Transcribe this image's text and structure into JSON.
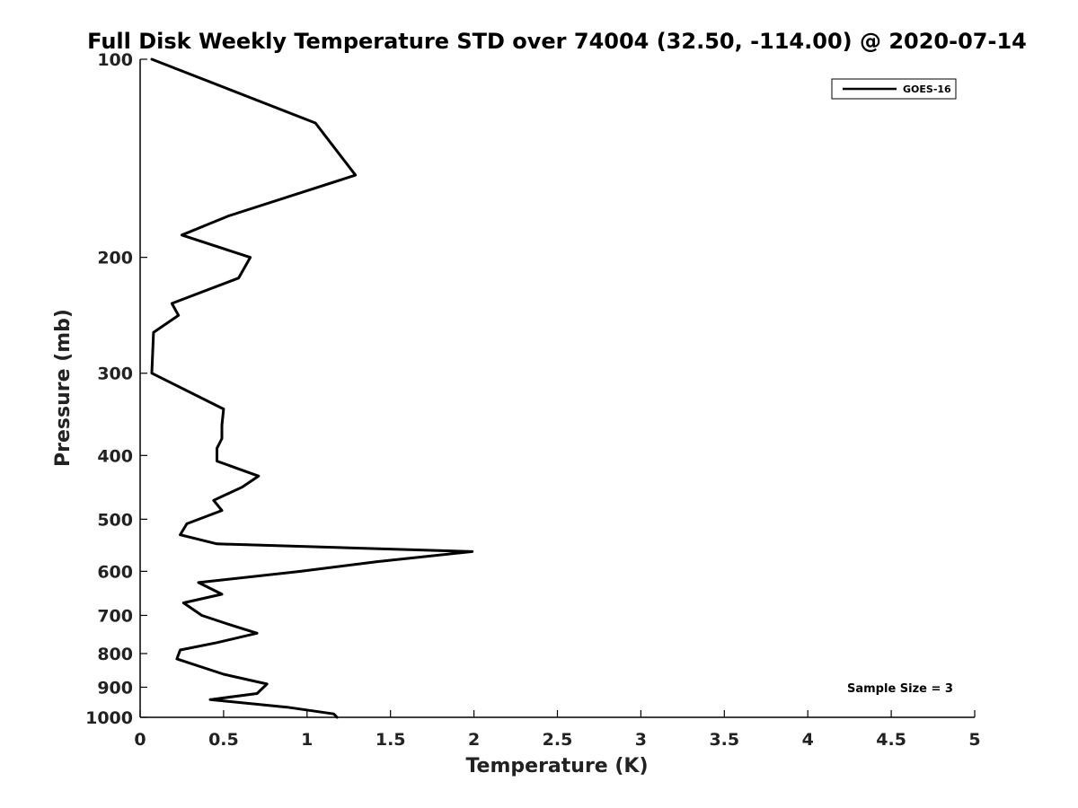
{
  "chart_data": {
    "type": "line",
    "title": "Full Disk Weekly Temperature STD over 74004 (32.50, -114.00) @ 2020-07-14",
    "xlabel": "Temperature (K)",
    "ylabel": "Pressure (mb)",
    "xlim": [
      0,
      5
    ],
    "ylim": [
      100,
      1000
    ],
    "y_scale": "log",
    "y_reversed": true,
    "x_ticks": [
      0,
      0.5,
      1,
      1.5,
      2,
      2.5,
      3,
      3.5,
      4,
      4.5,
      5
    ],
    "x_tick_labels": [
      "0",
      "0.5",
      "1",
      "1.5",
      "2",
      "2.5",
      "3",
      "3.5",
      "4",
      "4.5",
      "5"
    ],
    "y_ticks": [
      100,
      200,
      300,
      400,
      500,
      600,
      700,
      800,
      900,
      1000
    ],
    "y_tick_labels": [
      "100",
      "200",
      "300",
      "400",
      "500",
      "600",
      "700",
      "800",
      "900",
      "1000"
    ],
    "grid": false,
    "legend_position": "top-right",
    "series": [
      {
        "name": "GOES-16",
        "color": "#000000",
        "points": [
          [
            0.07,
            100
          ],
          [
            1.05,
            125
          ],
          [
            1.29,
            150
          ],
          [
            0.53,
            173
          ],
          [
            0.25,
            185
          ],
          [
            0.66,
            200
          ],
          [
            0.59,
            215
          ],
          [
            0.19,
            235
          ],
          [
            0.23,
            245
          ],
          [
            0.08,
            260
          ],
          [
            0.07,
            300
          ],
          [
            0.5,
            340
          ],
          [
            0.49,
            360
          ],
          [
            0.49,
            377
          ],
          [
            0.46,
            390
          ],
          [
            0.46,
            408
          ],
          [
            0.71,
            430
          ],
          [
            0.61,
            447
          ],
          [
            0.44,
            468
          ],
          [
            0.49,
            485
          ],
          [
            0.28,
            508
          ],
          [
            0.24,
            528
          ],
          [
            0.46,
            545
          ],
          [
            1.99,
            560
          ],
          [
            1.42,
            580
          ],
          [
            0.96,
            600
          ],
          [
            0.35,
            624
          ],
          [
            0.49,
            650
          ],
          [
            0.26,
            670
          ],
          [
            0.37,
            700
          ],
          [
            0.55,
            725
          ],
          [
            0.7,
            745
          ],
          [
            0.46,
            770
          ],
          [
            0.24,
            790
          ],
          [
            0.22,
            815
          ],
          [
            0.5,
            860
          ],
          [
            0.76,
            890
          ],
          [
            0.7,
            920
          ],
          [
            0.42,
            940
          ],
          [
            0.88,
            965
          ],
          [
            1.16,
            988
          ],
          [
            1.18,
            1000
          ]
        ]
      }
    ],
    "annotation": "Sample Size = 3"
  }
}
